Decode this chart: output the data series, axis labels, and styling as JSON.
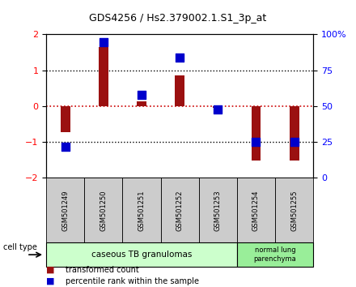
{
  "title": "GDS4256 / Hs2.379002.1.S1_3p_at",
  "samples": [
    "GSM501249",
    "GSM501250",
    "GSM501251",
    "GSM501252",
    "GSM501253",
    "GSM501254",
    "GSM501255"
  ],
  "red_bars": [
    -0.72,
    1.65,
    0.13,
    0.85,
    -0.05,
    -1.52,
    -1.52
  ],
  "blue_dots": [
    -1.12,
    1.78,
    0.32,
    1.35,
    -0.08,
    -1.0,
    -1.0
  ],
  "ylim": [
    -2,
    2
  ],
  "yticks_left": [
    -2,
    -1,
    0,
    1,
    2
  ],
  "bar_color": "#9B1010",
  "dot_color": "#0000CC",
  "hline_zero_color": "#CC0000",
  "hline_pm1_color": "#000000",
  "bg_color": "#FFFFFF",
  "group1_label": "caseous TB granulomas",
  "group1_samples": [
    0,
    1,
    2,
    3,
    4
  ],
  "group2_label": "normal lung\nparenchyma",
  "group2_samples": [
    5,
    6
  ],
  "group1_color": "#CCFFCC",
  "group2_color": "#99EE99",
  "sample_bg": "#CCCCCC",
  "bar_width": 0.25,
  "dot_size": 55,
  "celltype_label": "cell type",
  "legend1": "transformed count",
  "legend2": "percentile rank within the sample"
}
